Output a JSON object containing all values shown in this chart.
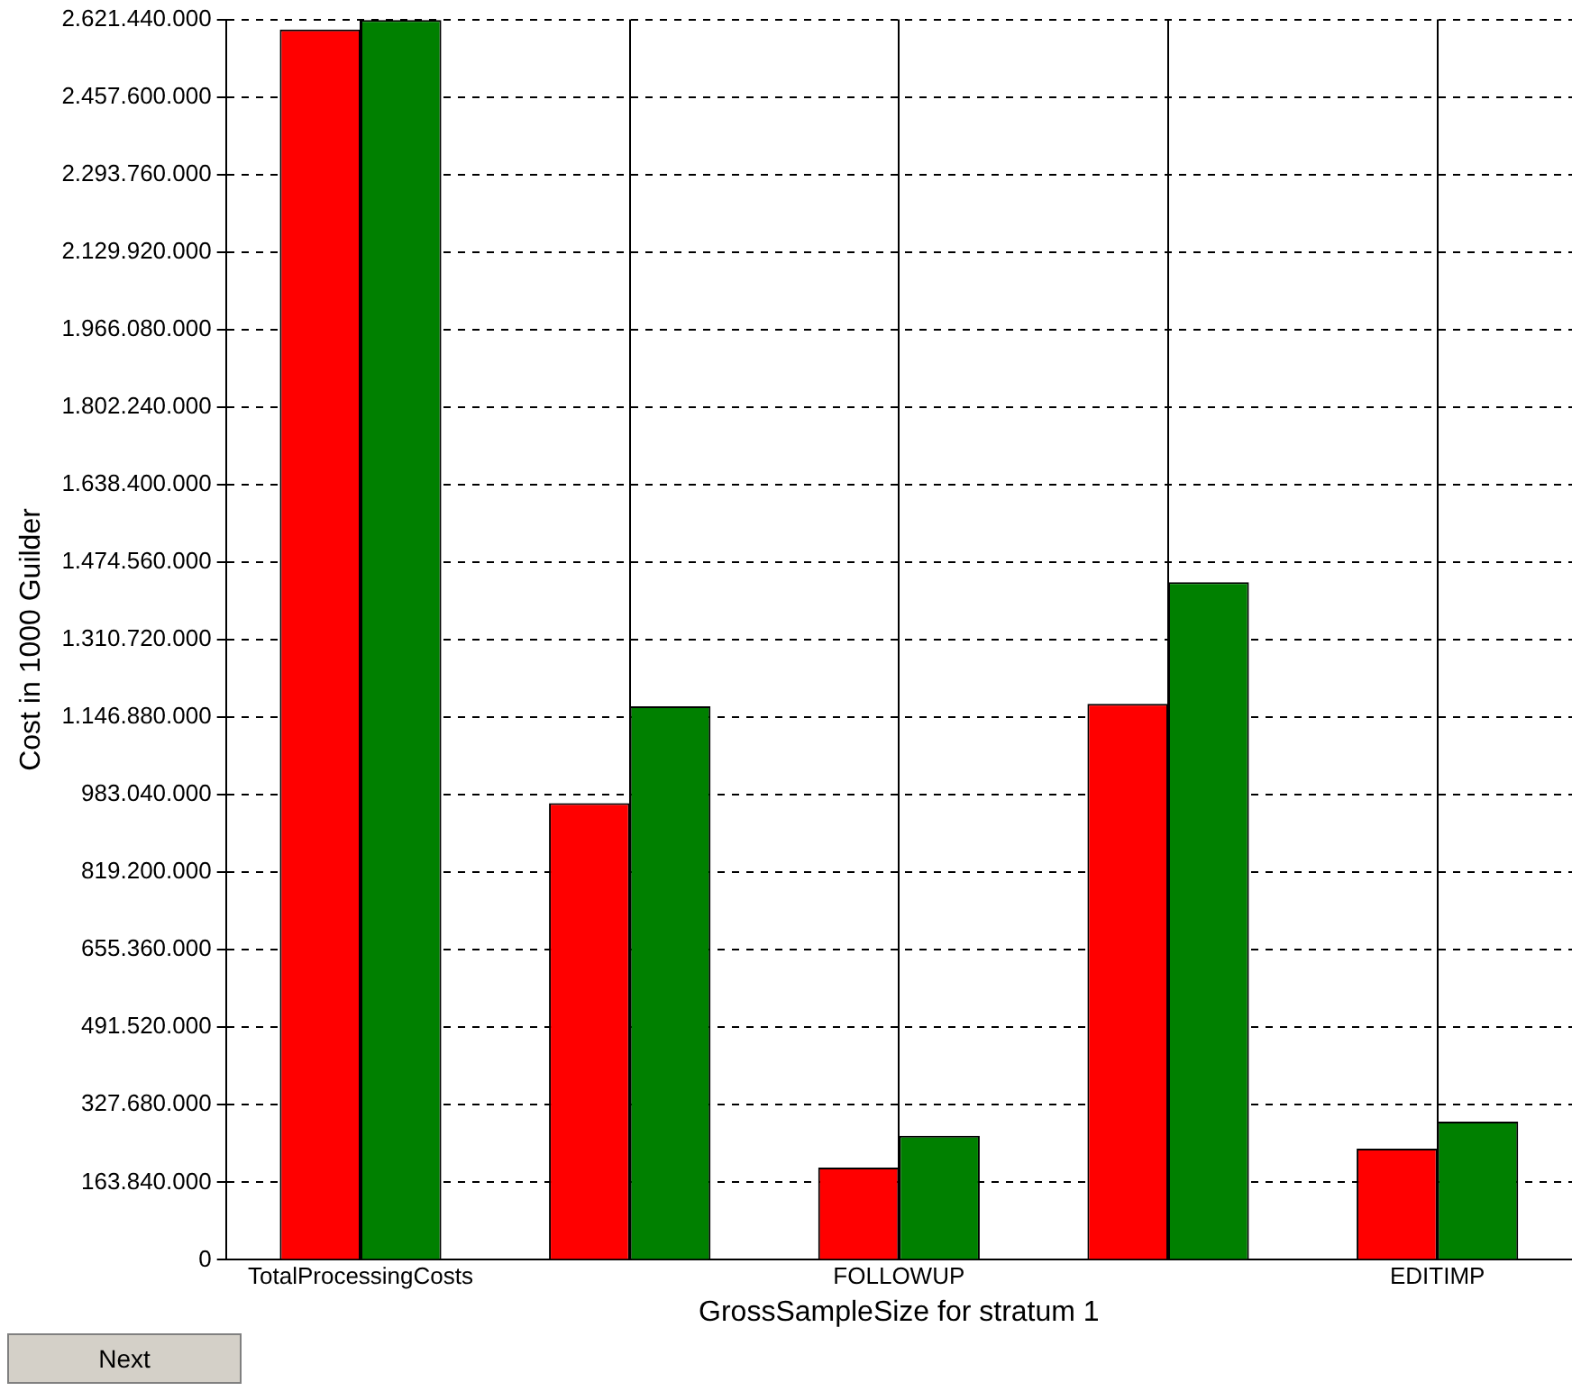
{
  "chart_data": {
    "type": "bar",
    "xlabel": "GrossSampleSize for stratum 1",
    "ylabel": "Cost in 1000 Guilder",
    "categories": [
      "TotalProcessingCosts",
      null,
      "FOLLOWUP",
      null,
      "EDITIMP"
    ],
    "series": [
      {
        "color": "#ff0000",
        "values": [
          2600000000,
          965000000,
          195000000,
          1175000000,
          235000000
        ]
      },
      {
        "color": "#008000",
        "values": [
          2620000000,
          1170000000,
          262000000,
          1432000000,
          292000000
        ]
      }
    ],
    "ylim": [
      0,
      2621440000
    ],
    "yticks": [
      {
        "value": 0,
        "label": "0"
      },
      {
        "value": 163840000,
        "label": "163.840.000"
      },
      {
        "value": 327680000,
        "label": "327.680.000"
      },
      {
        "value": 491520000,
        "label": "491.520.000"
      },
      {
        "value": 655360000,
        "label": "655.360.000"
      },
      {
        "value": 819200000,
        "label": "819.200.000"
      },
      {
        "value": 983040000,
        "label": "983.040.000"
      },
      {
        "value": 1146880000,
        "label": "1.146.880.000"
      },
      {
        "value": 1310720000,
        "label": "1.310.720.000"
      },
      {
        "value": 1474560000,
        "label": "1.474.560.000"
      },
      {
        "value": 1638400000,
        "label": "1.638.400.000"
      },
      {
        "value": 1802240000,
        "label": "1.802.240.000"
      },
      {
        "value": 1966080000,
        "label": "1.966.080.000"
      },
      {
        "value": 2129920000,
        "label": "2.129.920.000"
      },
      {
        "value": 2293760000,
        "label": "2.293.760.000"
      },
      {
        "value": 2457600000,
        "label": "2.457.600.000"
      },
      {
        "value": 2621440000,
        "label": "2.621.440.000"
      }
    ],
    "grid": true,
    "legend": false,
    "annotations": [
      "Next"
    ]
  }
}
